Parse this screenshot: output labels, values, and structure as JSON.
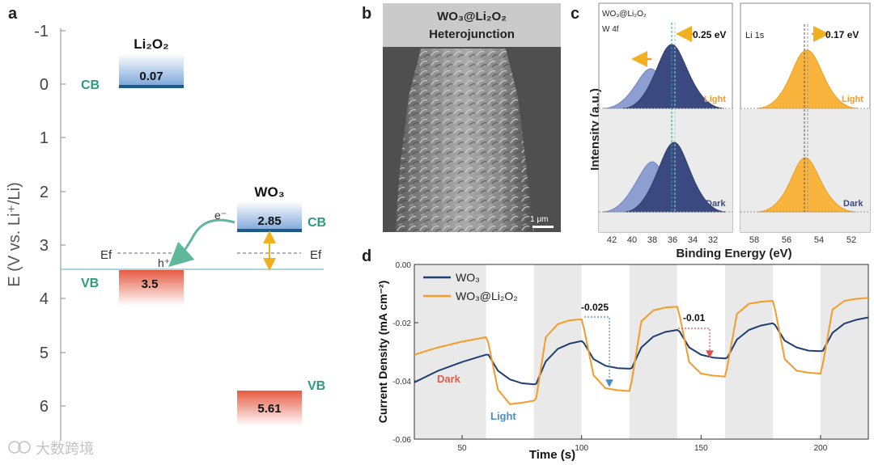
{
  "panels": {
    "a": {
      "label": "a",
      "y_axis_title": "E (V vs. Li⁺/Li)",
      "y_ticks": [
        "-1",
        "0",
        "1",
        "2",
        "3",
        "4",
        "5",
        "6"
      ],
      "li2o2": {
        "title": "Li₂O₂",
        "cb_value": "0.07",
        "cb_label": "CB",
        "vb_value": "3.5",
        "vb_label": "VB"
      },
      "wo3": {
        "title": "WO₃",
        "cb_value": "2.85",
        "cb_label": "CB",
        "vb_value": "5.61",
        "vb_label": "VB"
      },
      "electron_label": "e⁻",
      "hole_label": "h⁺",
      "fermi_label_left": "Ef",
      "fermi_label_right": "Ef"
    },
    "b": {
      "label": "b",
      "title_line1": "WO₃@Li₂O₂",
      "title_line2": "Heterojunction",
      "scale_bar": "1 μm"
    },
    "c": {
      "label": "c",
      "w4f_title_line1": "WO₃@Li₂O₂",
      "w4f_title_line2": "W 4f",
      "li1s_title": "Li 1s",
      "w4f_shift": "0.25 eV",
      "li1s_shift": "0.17 eV",
      "light_label": "Light",
      "dark_label": "Dark",
      "y_axis_title": "Intensity (a.u.)",
      "x_axis_title": "Binding Energy (eV)",
      "w4f_ticks": [
        "42",
        "40",
        "38",
        "36",
        "34",
        "32"
      ],
      "li1s_ticks": [
        "58",
        "56",
        "54",
        "52"
      ]
    },
    "d": {
      "label": "d",
      "annotation_1": "-0.025",
      "annotation_2": "-0.01",
      "dark_label": "Dark",
      "light_label": "Light"
    }
  },
  "watermark": "大数跨境",
  "colors": {
    "wo3_line": "#1f3e73",
    "composite_line": "#f39c2a",
    "cb_blue": "#5b8ec8",
    "vb_red": "#e0604a",
    "teal": "#2f9a7e",
    "xps_blue_light": "#8c9fd0",
    "xps_blue_dark": "#3a4a80",
    "xps_orange": "#f8b43c"
  },
  "chart_data": {
    "type": "line",
    "title": "",
    "xlabel": "Time (s)",
    "ylabel": "Current Density (mA cm⁻²)",
    "xlim": [
      30,
      220
    ],
    "ylim": [
      -0.06,
      0.0
    ],
    "x_ticks": [
      50,
      100,
      150,
      200
    ],
    "y_ticks": [
      "0.00",
      "-0.02",
      "-0.04",
      "-0.06"
    ],
    "dark_light_period_s": 20,
    "light_intervals": [
      [
        60,
        80
      ],
      [
        100,
        120
      ],
      [
        140,
        160
      ],
      [
        180,
        200
      ]
    ],
    "series": [
      {
        "name": "WO₃",
        "color": "#1f3e73",
        "x": [
          30,
          40,
          50,
          60,
          61,
          65,
          70,
          75,
          80,
          81,
          85,
          90,
          95,
          100,
          101,
          105,
          110,
          115,
          120,
          121,
          125,
          130,
          135,
          140,
          141,
          145,
          150,
          155,
          160,
          161,
          165,
          170,
          175,
          180,
          181,
          185,
          190,
          195,
          200,
          201,
          205,
          210,
          215,
          220
        ],
        "values": [
          -0.0405,
          -0.0365,
          -0.0335,
          -0.031,
          -0.031,
          -0.0365,
          -0.0395,
          -0.0408,
          -0.0412,
          -0.041,
          -0.0333,
          -0.029,
          -0.0272,
          -0.0263,
          -0.027,
          -0.0325,
          -0.0348,
          -0.0356,
          -0.0358,
          -0.0356,
          -0.0285,
          -0.0248,
          -0.0232,
          -0.0225,
          -0.023,
          -0.0285,
          -0.031,
          -0.032,
          -0.0323,
          -0.032,
          -0.0258,
          -0.0225,
          -0.021,
          -0.0202,
          -0.0208,
          -0.0262,
          -0.0285,
          -0.0296,
          -0.0298,
          -0.0296,
          -0.0235,
          -0.0203,
          -0.019,
          -0.0182
        ]
      },
      {
        "name": "WO₃@Li₂O₂",
        "color": "#f39c2a",
        "x": [
          30,
          40,
          50,
          60,
          61,
          65,
          70,
          75,
          80,
          81,
          85,
          90,
          95,
          100,
          101,
          105,
          110,
          115,
          120,
          121,
          125,
          130,
          135,
          140,
          141,
          145,
          150,
          155,
          160,
          161,
          165,
          170,
          175,
          180,
          181,
          185,
          190,
          195,
          200,
          201,
          205,
          210,
          215,
          220
        ],
        "values": [
          -0.031,
          -0.0285,
          -0.0265,
          -0.025,
          -0.027,
          -0.043,
          -0.048,
          -0.0475,
          -0.0468,
          -0.046,
          -0.025,
          -0.0205,
          -0.0192,
          -0.0188,
          -0.022,
          -0.038,
          -0.0425,
          -0.0432,
          -0.0435,
          -0.04,
          -0.0195,
          -0.0158,
          -0.0148,
          -0.0145,
          -0.0175,
          -0.0335,
          -0.0375,
          -0.0382,
          -0.0385,
          -0.035,
          -0.017,
          -0.0135,
          -0.0128,
          -0.0125,
          -0.0155,
          -0.0325,
          -0.0365,
          -0.0372,
          -0.0375,
          -0.034,
          -0.0155,
          -0.0125,
          -0.0118,
          -0.0115
        ]
      }
    ]
  }
}
